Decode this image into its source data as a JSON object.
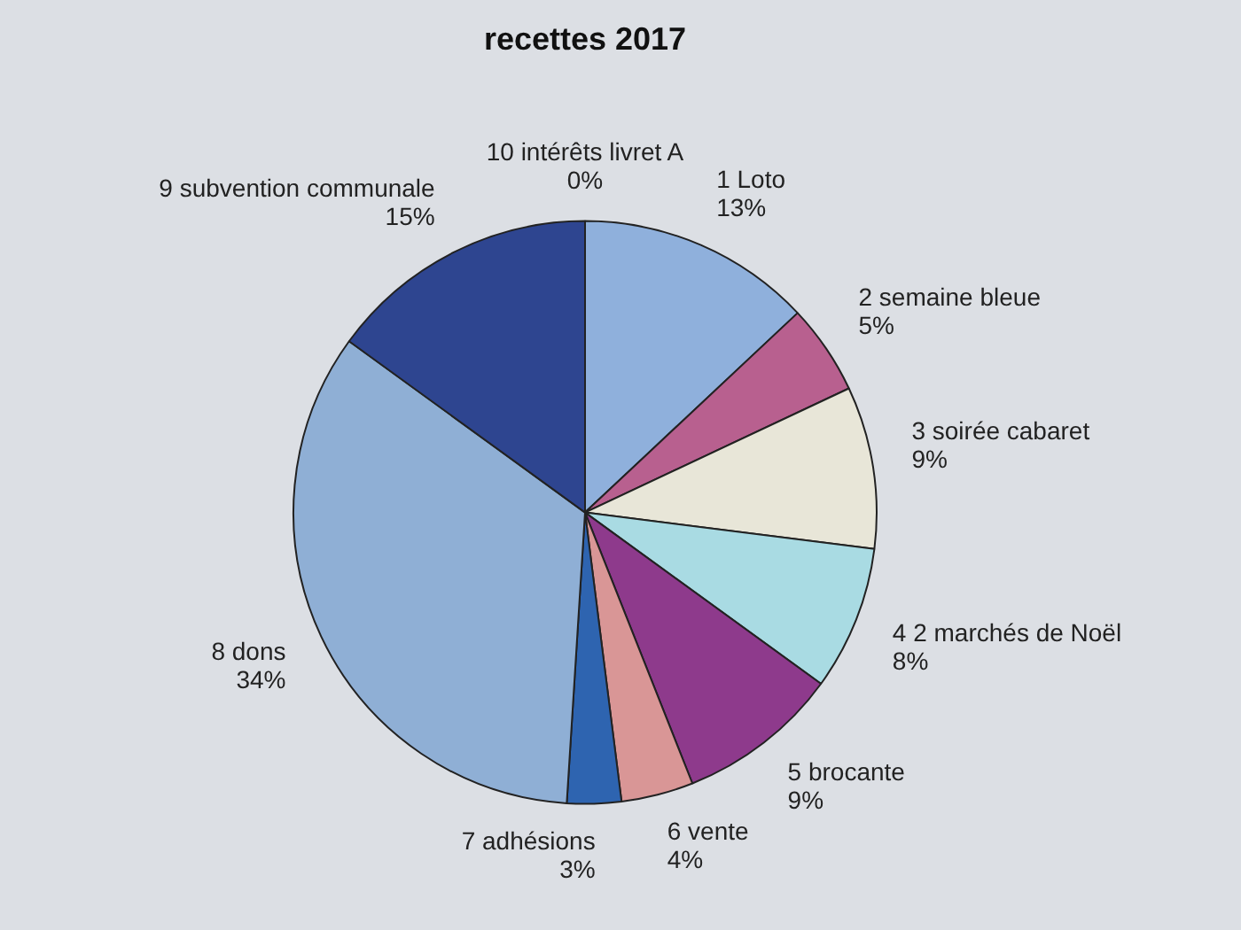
{
  "chart_data": {
    "type": "pie",
    "title": "recettes 2017",
    "categories": [
      "1 Loto",
      "2 semaine bleue",
      "3 soirée cabaret",
      "4 2 marchés de Noël",
      "5 brocante",
      "6 vente",
      "7 adhésions",
      "8 dons",
      "9 subvention communale",
      "10 intérêts livret A"
    ],
    "values": [
      13,
      5,
      9,
      8,
      9,
      4,
      3,
      34,
      15,
      0
    ],
    "value_labels": [
      "13%",
      "5%",
      "9%",
      "8%",
      "9%",
      "4%",
      "3%",
      "34%",
      "15%",
      "0%"
    ],
    "colors": [
      "#8fb0dc",
      "#b8608f",
      "#e8e6d8",
      "#a9dbe3",
      "#8e3a8c",
      "#d99696",
      "#2e64b0",
      "#8fafd5",
      "#2e4590",
      "#c0304a"
    ],
    "legend": false
  }
}
